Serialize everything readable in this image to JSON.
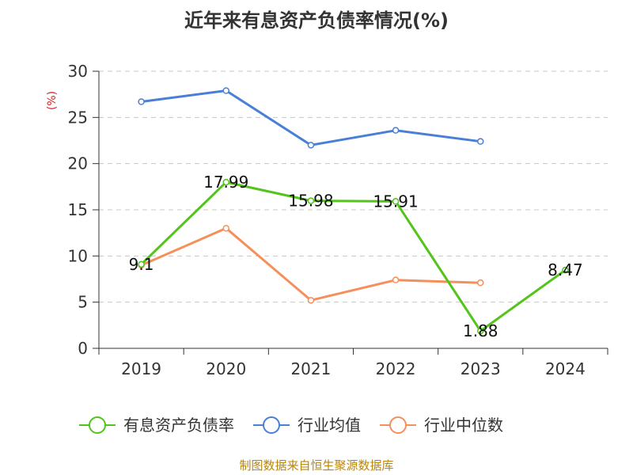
{
  "chart_data": {
    "type": "line",
    "title": "近年来有息资产负债率情况(%)",
    "ylabel": "(%)",
    "ylim": [
      0,
      30
    ],
    "yticks": [
      0,
      5,
      10,
      15,
      20,
      25,
      30
    ],
    "categories": [
      "2019",
      "2020",
      "2021",
      "2022",
      "2023",
      "2024"
    ],
    "grid": true,
    "legend_position": "bottom",
    "series": [
      {
        "name": "有息资产负债率",
        "color": "#52c41a",
        "values": [
          9.1,
          17.99,
          15.98,
          15.91,
          1.88,
          8.47
        ],
        "labels": [
          "9.1",
          "17.99",
          "15.98",
          "15.91",
          "1.88",
          "8.47"
        ]
      },
      {
        "name": "行业均值",
        "color": "#4a7fd6",
        "values": [
          26.7,
          27.9,
          22.0,
          23.6,
          22.4,
          null
        ]
      },
      {
        "name": "行业中位数",
        "color": "#f58f5c",
        "values": [
          9.0,
          13.0,
          5.2,
          7.4,
          7.1,
          null
        ]
      }
    ],
    "source": "制图数据来自恒生聚源数据库"
  }
}
